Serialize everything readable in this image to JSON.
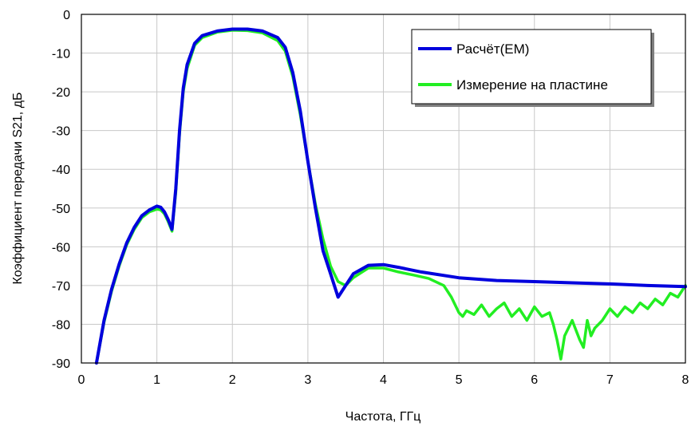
{
  "chart_data": {
    "type": "line",
    "title": "",
    "xlabel": "Частота, ГГц",
    "ylabel": "Коэффициент передачи S21, дБ",
    "xlim": [
      0,
      8
    ],
    "ylim": [
      -90,
      0
    ],
    "xticks": [
      0,
      1,
      2,
      3,
      4,
      5,
      6,
      7,
      8
    ],
    "yticks": [
      0,
      -10,
      -20,
      -30,
      -40,
      -50,
      -60,
      -70,
      -80,
      -90
    ],
    "xtick_labels": [
      "0",
      "1",
      "2",
      "3",
      "4",
      "5",
      "6",
      "7",
      "8"
    ],
    "ytick_labels": [
      "0",
      "-10",
      "-20",
      "-30",
      "-40",
      "-50",
      "-60",
      "-70",
      "-80",
      "-90"
    ],
    "grid": true,
    "legend_position": "top-right",
    "series": [
      {
        "name": "Расчёт(EM)",
        "color": "#0000dd",
        "x": [
          0.2,
          0.3,
          0.4,
          0.5,
          0.6,
          0.7,
          0.8,
          0.9,
          1.0,
          1.05,
          1.1,
          1.15,
          1.2,
          1.25,
          1.3,
          1.35,
          1.4,
          1.5,
          1.6,
          1.8,
          2.0,
          2.2,
          2.4,
          2.6,
          2.7,
          2.8,
          2.9,
          3.0,
          3.1,
          3.2,
          3.3,
          3.4,
          3.5,
          3.6,
          3.8,
          4.0,
          4.2,
          4.5,
          5.0,
          5.5,
          6.0,
          6.5,
          7.0,
          7.5,
          8.0
        ],
        "y": [
          -90,
          -79,
          -71,
          -64.5,
          -59,
          -55,
          -52,
          -50.5,
          -49.5,
          -49.8,
          -51,
          -53,
          -55.5,
          -45,
          -30,
          -19,
          -13,
          -7.5,
          -5.5,
          -4.3,
          -3.8,
          -3.8,
          -4.3,
          -6,
          -8.5,
          -15,
          -25,
          -38,
          -50,
          -61,
          -67,
          -73,
          -70,
          -67,
          -64.8,
          -64.6,
          -65.3,
          -66.5,
          -68,
          -68.7,
          -69,
          -69.3,
          -69.6,
          -70,
          -70.3
        ]
      },
      {
        "name": "Измерение на пластине",
        "color": "#22ee22",
        "x": [
          0.2,
          0.3,
          0.4,
          0.5,
          0.6,
          0.7,
          0.8,
          0.9,
          1.0,
          1.05,
          1.1,
          1.15,
          1.2,
          1.25,
          1.3,
          1.35,
          1.4,
          1.5,
          1.6,
          1.8,
          2.0,
          2.2,
          2.4,
          2.6,
          2.7,
          2.8,
          2.9,
          3.0,
          3.1,
          3.2,
          3.3,
          3.4,
          3.5,
          3.6,
          3.8,
          4.0,
          4.2,
          4.4,
          4.6,
          4.8,
          4.9,
          5.0,
          5.05,
          5.1,
          5.2,
          5.3,
          5.4,
          5.5,
          5.6,
          5.7,
          5.8,
          5.9,
          6.0,
          6.1,
          6.2,
          6.25,
          6.3,
          6.35,
          6.4,
          6.5,
          6.6,
          6.65,
          6.7,
          6.75,
          6.8,
          6.9,
          7.0,
          7.1,
          7.2,
          7.3,
          7.4,
          7.5,
          7.6,
          7.7,
          7.8,
          7.9,
          8.0
        ],
        "y": [
          -90,
          -79.5,
          -71.5,
          -65,
          -59.5,
          -55.5,
          -52.5,
          -51,
          -50.3,
          -50.5,
          -51.5,
          -53.5,
          -56,
          -46,
          -31,
          -20,
          -14,
          -8,
          -6,
          -4.6,
          -4.1,
          -4.2,
          -4.8,
          -6.8,
          -9.5,
          -16,
          -26,
          -38,
          -49,
          -58,
          -65,
          -69,
          -70,
          -68,
          -65.5,
          -65.5,
          -66.5,
          -67.3,
          -68.2,
          -70,
          -73,
          -77,
          -78,
          -76.5,
          -77.5,
          -75,
          -78,
          -76,
          -74.5,
          -78,
          -76,
          -79,
          -75.5,
          -78,
          -77,
          -80,
          -84,
          -89,
          -83,
          -79,
          -84,
          -86,
          -79,
          -83,
          -81,
          -79,
          -76,
          -78,
          -75.5,
          -77,
          -74.5,
          -76,
          -73.5,
          -75,
          -72,
          -73,
          -70
        ]
      }
    ]
  }
}
